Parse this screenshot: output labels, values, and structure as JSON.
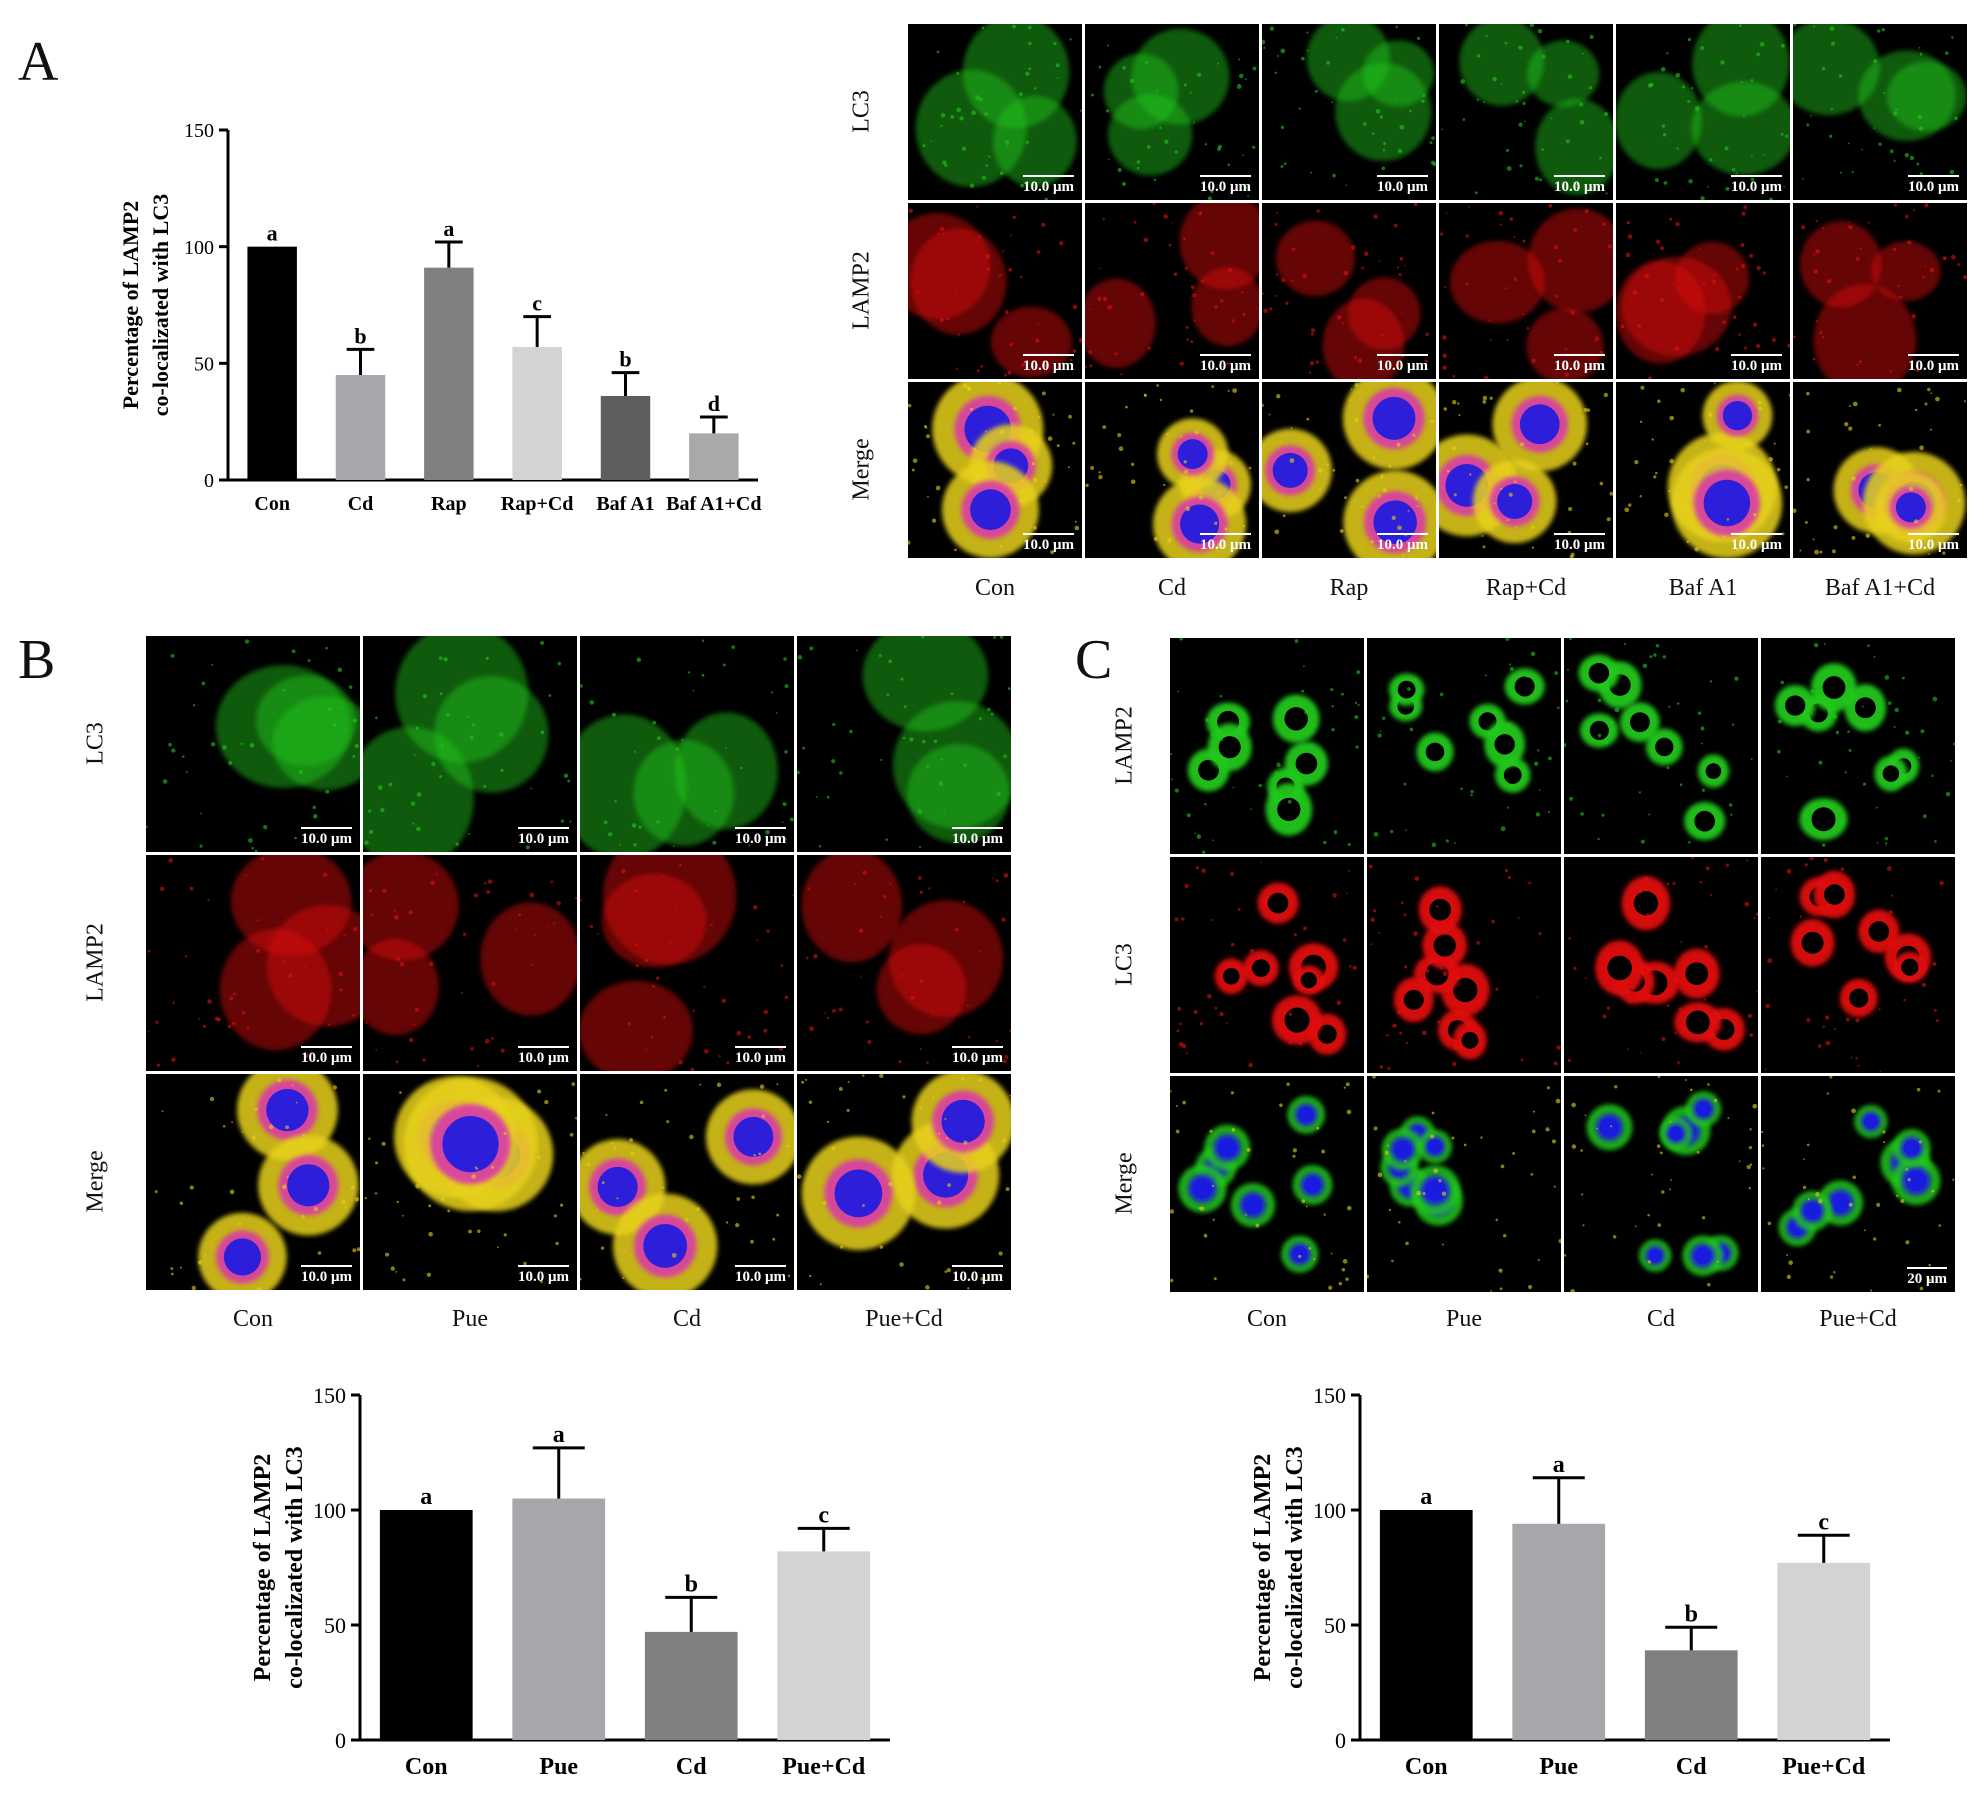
{
  "panels": {
    "a": {
      "letter": "A"
    },
    "b": {
      "letter": "B"
    },
    "c": {
      "letter": "C"
    }
  },
  "micrographs": {
    "a": {
      "row_labels": [
        "LC3",
        "LAMP2",
        "Merge"
      ],
      "col_labels": [
        "Con",
        "Cd",
        "Rap",
        "Rap+Cd",
        "Baf A1",
        "Baf A1+Cd"
      ],
      "scale_text": "10.0 μm",
      "channels": [
        "green",
        "red",
        "merge"
      ]
    },
    "b": {
      "row_labels": [
        "LC3",
        "LAMP2",
        "Merge"
      ],
      "col_labels": [
        "Con",
        "Pue",
        "Cd",
        "Pue+Cd"
      ],
      "scale_text": "10.0 μm",
      "channels": [
        "green",
        "red",
        "merge"
      ]
    },
    "c": {
      "row_labels": [
        "LAMP2",
        "LC3",
        "Merge"
      ],
      "col_labels": [
        "Con",
        "Pue",
        "Cd",
        "Pue+Cd"
      ],
      "scale_text": "20 μm",
      "channels": [
        "green",
        "red",
        "merge"
      ]
    }
  },
  "colors": {
    "green": "#22c81e",
    "red": "#e01010",
    "blue": "#1a1ae0",
    "yellow": "#e8d21a",
    "magenta": "#d83aa8"
  },
  "chart_data": [
    {
      "id": "A",
      "type": "bar",
      "categories": [
        "Con",
        "Cd",
        "Rap",
        "Rap+Cd",
        "Baf A1",
        "Baf A1+Cd"
      ],
      "values": [
        100,
        45,
        91,
        57,
        36,
        20
      ],
      "errors": [
        0,
        11,
        11,
        13,
        10,
        7
      ],
      "letters": [
        "a",
        "b",
        "a",
        "c",
        "b",
        "d"
      ],
      "bar_colors": [
        "#000000",
        "#a6a6ab",
        "#808080",
        "#d3d3d3",
        "#5e5e5e",
        "#a9a9a9"
      ],
      "ylabel": [
        "Percentage of LAMP2",
        "co-localizated with LC3"
      ],
      "xlabel": "",
      "ylim": [
        0,
        150
      ],
      "yticks": [
        0,
        50,
        100,
        150
      ]
    },
    {
      "id": "B",
      "type": "bar",
      "categories": [
        "Con",
        "Pue",
        "Cd",
        "Pue+Cd"
      ],
      "values": [
        100,
        105,
        47,
        82
      ],
      "errors": [
        0,
        22,
        15,
        10
      ],
      "letters": [
        "a",
        "a",
        "b",
        "c"
      ],
      "bar_colors": [
        "#000000",
        "#a6a6ab",
        "#808080",
        "#d3d3d3"
      ],
      "ylabel": [
        "Percentage of LAMP2",
        "co-localizated with LC3"
      ],
      "xlabel": "",
      "ylim": [
        0,
        150
      ],
      "yticks": [
        0,
        50,
        100,
        150
      ]
    },
    {
      "id": "C",
      "type": "bar",
      "categories": [
        "Con",
        "Pue",
        "Cd",
        "Pue+Cd"
      ],
      "values": [
        100,
        94,
        39,
        77
      ],
      "errors": [
        0,
        20,
        10,
        12
      ],
      "letters": [
        "a",
        "a",
        "b",
        "c"
      ],
      "bar_colors": [
        "#000000",
        "#a6a6ab",
        "#808080",
        "#d3d3d3"
      ],
      "ylabel": [
        "Percentage of LAMP2",
        "co-localizated with LC3"
      ],
      "xlabel": "",
      "ylim": [
        0,
        150
      ],
      "yticks": [
        0,
        50,
        100,
        150
      ]
    }
  ]
}
